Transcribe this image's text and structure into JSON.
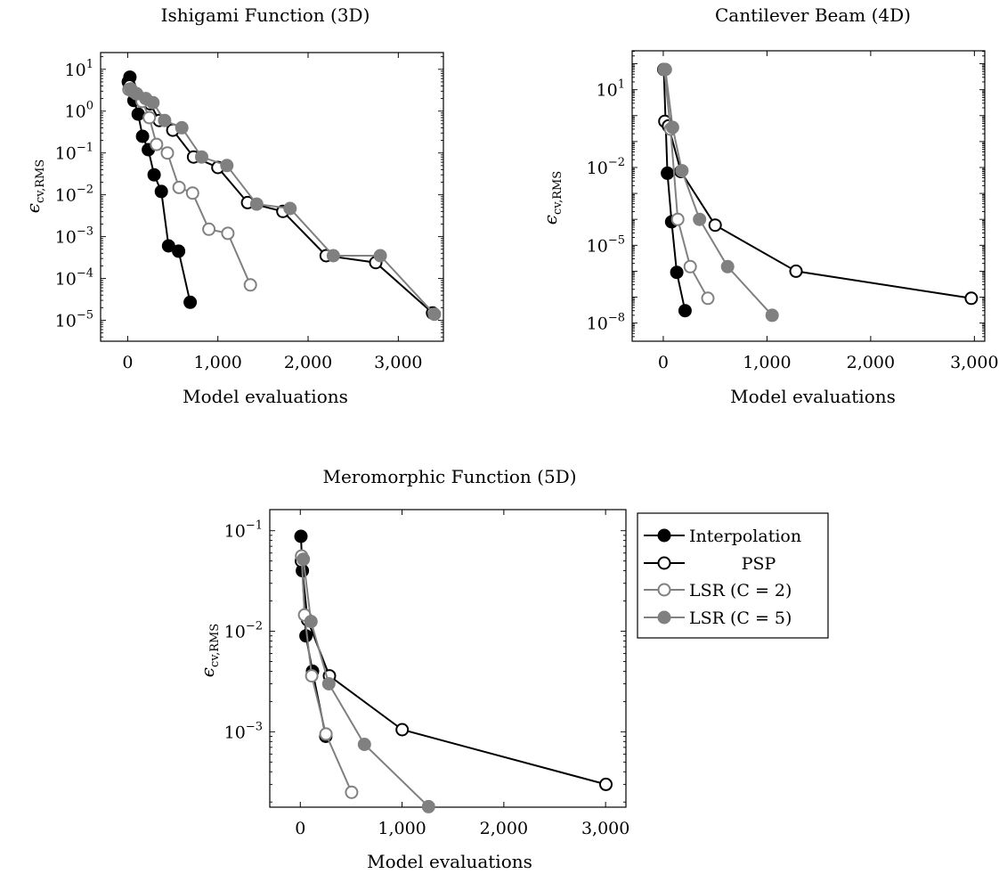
{
  "colors": {
    "interpolation": "#000000",
    "psp": "#000000",
    "lsr2": "#808080",
    "lsr5": "#808080"
  },
  "chart_data": [
    {
      "type": "line",
      "title": "Ishigami Function (3D)",
      "xlabel": "Model evaluations",
      "ylabel": "ϵcv,RMS",
      "yscale": "log",
      "xlim": [
        -300,
        3500
      ],
      "ylim_exp": [
        -5.5,
        1.4
      ],
      "xticks": [
        0,
        1000,
        2000,
        3000
      ],
      "xtick_labels": [
        "0",
        "1,000",
        "2,000",
        "3,000"
      ],
      "yticks": [
        -5,
        -4,
        -3,
        -2,
        -1,
        0,
        1
      ],
      "series": [
        {
          "name": "Interpolation",
          "style": "filled-black",
          "x": [
            7,
            25,
            69,
            117,
            165,
            229,
            293,
            373,
            453,
            565,
            693
          ],
          "y": [
            5,
            6.5,
            1.8,
            0.85,
            0.25,
            0.12,
            0.03,
            0.012,
            0.0006,
            0.00045,
            2.7e-05
          ]
        },
        {
          "name": "PSP",
          "style": "open-black",
          "x": [
            20,
            40,
            80,
            150,
            250,
            350,
            500,
            730,
            1000,
            1330,
            1720,
            2200,
            2750,
            3380
          ],
          "y": [
            4,
            3.2,
            2.5,
            2,
            1.5,
            0.6,
            0.35,
            0.08,
            0.045,
            0.0065,
            0.004,
            0.00035,
            0.00024,
            1.5e-05
          ]
        },
        {
          "name": "LSR (C = 2)",
          "style": "open-gray",
          "x": [
            14,
            50,
            100,
            160,
            240,
            320,
            440,
            570,
            720,
            900,
            1110,
            1360
          ],
          "y": [
            3.3,
            3,
            2.6,
            1.7,
            0.7,
            0.16,
            0.1,
            0.015,
            0.011,
            0.0015,
            0.0012,
            7e-05
          ]
        },
        {
          "name": "LSR (C = 5)",
          "style": "filled-gray",
          "x": [
            35,
            100,
            200,
            280,
            410,
            600,
            820,
            1100,
            1430,
            1800,
            2280,
            2800,
            3400
          ],
          "y": [
            3.4,
            2.6,
            2,
            1.6,
            0.6,
            0.4,
            0.08,
            0.05,
            0.006,
            0.0047,
            0.00035,
            0.00035,
            1.4e-05
          ]
        }
      ]
    },
    {
      "type": "line",
      "title": "Cantilever Beam (4D)",
      "xlabel": "Model evaluations",
      "ylabel": "ϵcv,RMS",
      "yscale": "log",
      "xlim": [
        -300,
        3100
      ],
      "ylim_exp": [
        -8.7,
        2.5
      ],
      "xticks": [
        0,
        1000,
        2000,
        3000
      ],
      "xtick_labels": [
        "0",
        "1,000",
        "2,000",
        "3,000"
      ],
      "yticks": [
        -8,
        -5,
        -2,
        1
      ],
      "series": [
        {
          "name": "Interpolation",
          "style": "filled-black",
          "x": [
            5,
            40,
            80,
            130,
            210
          ],
          "y": [
            60,
            0.006,
            8e-05,
            9e-07,
            3e-08
          ]
        },
        {
          "name": "PSP",
          "style": "open-black",
          "x": [
            15,
            50,
            170,
            500,
            1280,
            2970
          ],
          "y": [
            0.6,
            0.4,
            0.007,
            6e-05,
            1e-06,
            9e-08
          ]
        },
        {
          "name": "LSR (C = 2)",
          "style": "open-gray",
          "x": [
            10,
            70,
            140,
            260,
            430
          ],
          "y": [
            60,
            0.3,
            0.0001,
            1.5e-06,
            9e-08
          ]
        },
        {
          "name": "LSR (C = 5)",
          "style": "filled-gray",
          "x": [
            20,
            90,
            180,
            350,
            620,
            1050
          ],
          "y": [
            60,
            0.35,
            0.0075,
            0.0001,
            1.5e-06,
            2e-08
          ]
        }
      ]
    },
    {
      "type": "line",
      "title": "Meromorphic Function (5D)",
      "xlabel": "Model evaluations",
      "ylabel": "ϵcv,RMS",
      "yscale": "log",
      "xlim": [
        -300,
        3200
      ],
      "ylim_exp": [
        -3.75,
        -0.79
      ],
      "xticks": [
        0,
        1000,
        2000,
        3000
      ],
      "xtick_labels": [
        "0",
        "1,000",
        "2,000",
        "3,000"
      ],
      "yticks": [
        -3,
        -2,
        -1
      ],
      "series": [
        {
          "name": "Interpolation",
          "style": "filled-black",
          "x": [
            6,
            20,
            55,
            120,
            250
          ],
          "y": [
            0.088,
            0.04,
            0.009,
            0.004,
            0.0009
          ]
        },
        {
          "name": "PSP",
          "style": "open-black",
          "x": [
            11,
            71,
            286,
            1001,
            3003
          ],
          "y": [
            0.05,
            0.013,
            0.0036,
            0.00105,
            0.0003
          ]
        },
        {
          "name": "LSR (C = 2)",
          "style": "open-gray",
          "x": [
            12,
            42,
            112,
            252,
            504
          ],
          "y": [
            0.056,
            0.0145,
            0.0036,
            0.00095,
            0.00025
          ]
        },
        {
          "name": "LSR (C = 5)",
          "style": "filled-gray",
          "x": [
            30,
            105,
            280,
            630,
            1260
          ],
          "y": [
            0.052,
            0.0125,
            0.003,
            0.00075,
            0.00018
          ]
        }
      ],
      "legend": {
        "position": "outside-right",
        "entries": [
          "Interpolation",
          "PSP",
          "LSR (C = 2)",
          "LSR (C = 5)"
        ]
      }
    }
  ]
}
